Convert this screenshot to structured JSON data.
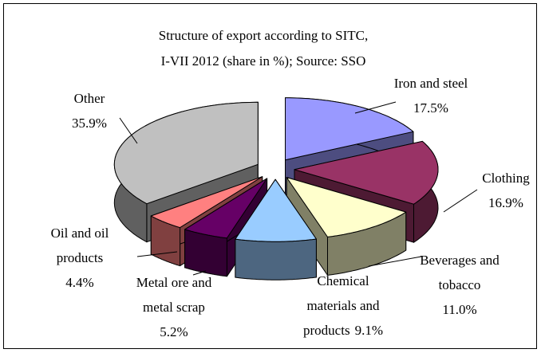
{
  "chart_data": {
    "type": "pie3d",
    "title": [
      "Structure of export according to SITC,",
      "I-VII 2012 (share in %); Source: SSO"
    ],
    "categories": [
      "Iron and steel",
      "Clothing",
      "Beverages and tobacco",
      "Chemical materials and products",
      "Metal ore and metal scrap",
      "Oil and oil products",
      "Other"
    ],
    "values": [
      17.5,
      16.9,
      11.0,
      9.1,
      5.2,
      4.4,
      35.9
    ],
    "value_labels": [
      "17.5%",
      "16.9%",
      "11.0%",
      "9.1%",
      "5.2%",
      "4.4%",
      "35.9%"
    ],
    "colors": [
      "#9999ff",
      "#993366",
      "#ffffcc",
      "#99ccff",
      "#660066",
      "#ff8080",
      "#c0c0c0"
    ]
  }
}
